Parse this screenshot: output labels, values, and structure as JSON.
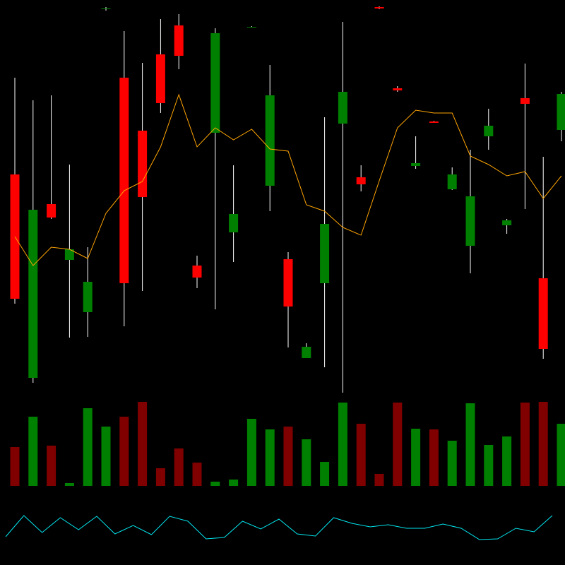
{
  "chart_data": [
    {
      "type": "candlestick",
      "up_color": "#008000",
      "down_color": "#ff0000",
      "wick_color": "#ffffff",
      "ylim": [
        240,
        800
      ],
      "open": [
        553,
        265,
        511,
        432,
        358,
        787,
        690,
        615,
        723,
        764,
        424,
        612,
        471,
        762,
        537,
        433,
        293,
        399,
        625,
        549,
        790,
        675,
        565,
        628,
        532,
        452,
        607,
        481,
        661,
        406,
        616
      ],
      "high": [
        690,
        658,
        665,
        567,
        450,
        790,
        756,
        711,
        773,
        780,
        438,
        760,
        566,
        763,
        708,
        443,
        314,
        634,
        769,
        566,
        791,
        678,
        607,
        629,
        563,
        588,
        646,
        490,
        710,
        578,
        670
      ],
      "low": [
        370,
        258,
        490,
        322,
        323,
        785,
        338,
        388,
        640,
        702,
        392,
        362,
        429,
        761,
        501,
        308,
        293,
        280,
        244,
        529,
        787,
        670,
        561,
        626,
        531,
        413,
        588,
        469,
        504,
        292,
        600
      ],
      "close": [
        377,
        503,
        492,
        447,
        401,
        788,
        399,
        521,
        654,
        721,
        407,
        753,
        497,
        762,
        665,
        366,
        309,
        483,
        670,
        539,
        788,
        672,
        569,
        626,
        553,
        522,
        622,
        488,
        653,
        306,
        667
      ],
      "series": [
        {
          "color": "#ffa500",
          "values": [
            465,
            424,
            450,
            447,
            434,
            498,
            530,
            543,
            592,
            666,
            592,
            619,
            602,
            617,
            589,
            586,
            510,
            501,
            478,
            467,
            544,
            619,
            644,
            640,
            640,
            579,
            567,
            551,
            557,
            519,
            551
          ]
        }
      ]
    },
    {
      "type": "bar",
      "up_color": "#008000",
      "down_color": "#800000",
      "ylim": [
        0,
        128
      ],
      "values": [
        55,
        98,
        57,
        4,
        110,
        84,
        98,
        119,
        25,
        53,
        33,
        6,
        9,
        95,
        80,
        84,
        66,
        34,
        118,
        88,
        17,
        118,
        81,
        80,
        64,
        117,
        58,
        70,
        118,
        119,
        88
      ]
    },
    {
      "type": "line",
      "color": "#00e5ee",
      "ylim": [
        0,
        100
      ],
      "values": [
        40,
        70,
        46,
        67,
        50,
        69,
        44,
        56,
        43,
        69,
        62,
        37,
        39,
        62,
        51,
        65,
        44,
        41,
        67,
        59,
        54,
        57,
        52,
        52,
        58,
        52,
        36,
        37,
        52,
        47,
        70
      ]
    }
  ]
}
